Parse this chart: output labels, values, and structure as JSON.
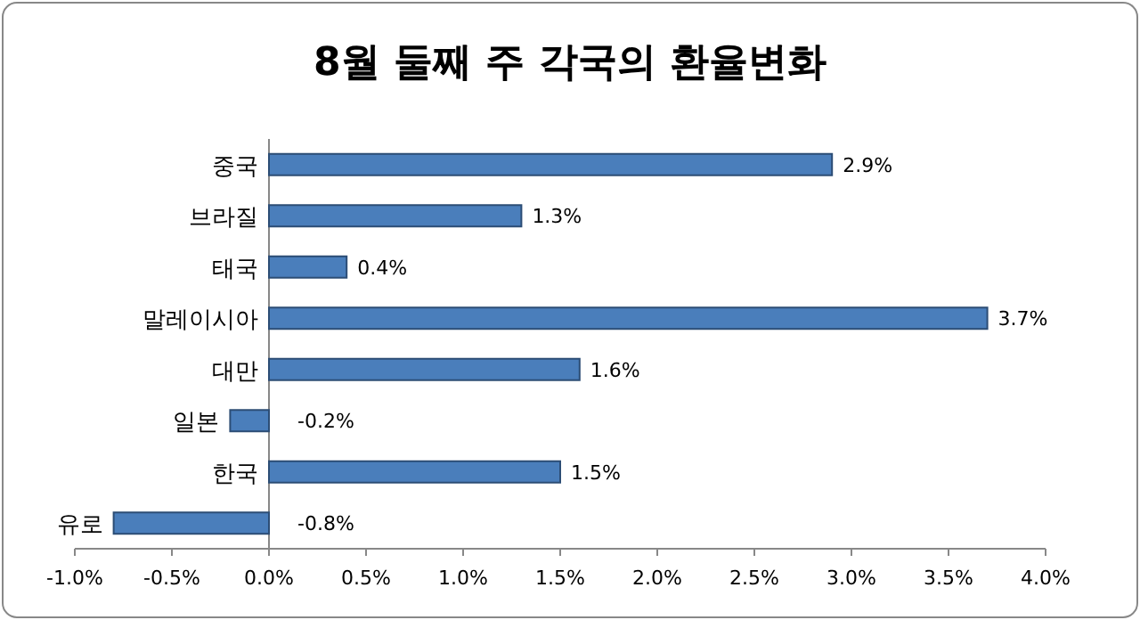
{
  "chart_data": {
    "type": "bar",
    "orientation": "horizontal",
    "title": "8월 둘째 주 각국의 환율변화",
    "categories": [
      "중국",
      "브라질",
      "태국",
      "말레이시아",
      "대만",
      "일본",
      "한국",
      "유로"
    ],
    "values": [
      2.9,
      1.3,
      0.4,
      3.7,
      1.6,
      -0.2,
      1.5,
      -0.8
    ],
    "value_labels": [
      "2.9%",
      "1.3%",
      "0.4%",
      "3.7%",
      "1.6%",
      "-0.2%",
      "1.5%",
      "-0.8%"
    ],
    "color": "#4a7ebb",
    "xlim": [
      -1.0,
      4.0
    ],
    "xticks": [
      {
        "value": -1.0,
        "label": "-1.0%"
      },
      {
        "value": -0.5,
        "label": "-0.5%"
      },
      {
        "value": 0,
        "label": "0.0%"
      },
      {
        "value": 0.5,
        "label": "0.5%"
      },
      {
        "value": 1.0,
        "label": "1.0%"
      },
      {
        "value": 1.5,
        "label": "1.5%"
      },
      {
        "value": 2.0,
        "label": "2.0%"
      },
      {
        "value": 2.5,
        "label": "2.5%"
      },
      {
        "value": 3.0,
        "label": "3.0%"
      },
      {
        "value": 3.5,
        "label": "3.5%"
      },
      {
        "value": 4.0,
        "label": "4.0%"
      }
    ]
  }
}
